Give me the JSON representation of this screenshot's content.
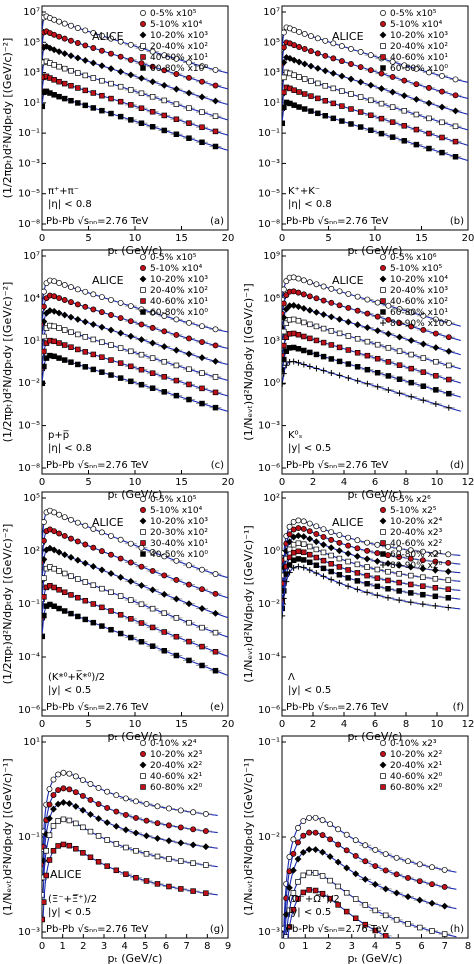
{
  "chart_data": [
    {
      "type": "scatter",
      "panel": "(a)",
      "logy": true,
      "xlim": [
        0,
        20
      ],
      "ylim": [
        1e-08,
        10000000.0
      ],
      "xticks": [
        "0",
        "5",
        "10",
        "15",
        "20"
      ],
      "yticks": [
        "10⁷",
        "10⁵",
        "10³",
        "10¹",
        "10⁻¹",
        "10⁻³",
        "10⁻⁵",
        "10⁻⁸"
      ],
      "ylabel": "(1/2πpₜ)d²N/dpₜdy [(GeV/c)⁻²]",
      "xlabel": "pₜ (GeV/c)",
      "experiment": "ALICE",
      "particle": "π⁺+π⁻",
      "cut": "|η| < 0.8",
      "system": "Pb-Pb √sₙₙ=2.76 TeV",
      "legend": [
        "0-5%  x10⁵",
        "5-10%  x10⁴",
        "10-20%  x10³",
        "20-40%  x10²",
        "40-60%  x10¹",
        "60-80%  x10⁰"
      ],
      "amp": [
        3000000.0,
        300000.0,
        30000.0,
        3000.0,
        300.0,
        30
      ],
      "peak": 0.3,
      "decay": [
        4.2,
        4.4,
        4.6,
        4.8,
        5.0,
        5.2
      ],
      "xmax": 20
    },
    {
      "type": "scatter",
      "panel": "(b)",
      "logy": true,
      "xlim": [
        0,
        20
      ],
      "ylim": [
        1e-08,
        10000000.0
      ],
      "xticks": [
        "0",
        "5",
        "10",
        "15",
        "20"
      ],
      "yticks": [
        "10⁷",
        "10⁵",
        "10³",
        "10¹",
        "10⁻¹",
        "10⁻³",
        "10⁻⁵",
        "10⁻⁸"
      ],
      "ylabel": "",
      "xlabel": "pₜ (GeV/c)",
      "experiment": "ALICE",
      "particle": "K⁺+K⁻",
      "cut": "|η| < 0.8",
      "system": "Pb-Pb √sₙₙ=2.76 TeV",
      "legend": [
        "0-5%  x10⁵",
        "5-10%  x10⁴",
        "10-20%  x10³",
        "20-40%  x10²",
        "40-60%  x10¹",
        "60-80%  x10⁰"
      ],
      "amp": [
        600000.0,
        60000.0,
        6000.0,
        600.0,
        60,
        6
      ],
      "peak": 0.5,
      "decay": [
        4.0,
        4.2,
        4.4,
        4.6,
        4.8,
        5.0
      ],
      "xmax": 20
    },
    {
      "type": "scatter",
      "panel": "(c)",
      "logy": true,
      "xlim": [
        0,
        20
      ],
      "ylim": [
        1e-08,
        10000000.0
      ],
      "xticks": [
        "0",
        "5",
        "10",
        "15",
        "20"
      ],
      "yticks": [
        "10⁷",
        "10⁴",
        "10¹",
        "10⁻²",
        "10⁻⁵",
        "10⁻⁸"
      ],
      "ylabel": "(1/2πpₜ)d²N/dpₜdy [(GeV/c)⁻²]",
      "xlabel": "pₜ (GeV/c)",
      "experiment": "ALICE",
      "particle": "p+p̅",
      "cut": "|η| < 0.8",
      "system": "Pb-Pb √sₙₙ=2.76 TeV",
      "legend": [
        "0-5%  x10⁵",
        "5-10%  x10⁴",
        "10-20%  x10³",
        "20-40%  x10²",
        "40-60%  x10¹",
        "60-80%  x10⁰"
      ],
      "amp": [
        200000.0,
        20000.0,
        2000.0,
        200.0,
        20,
        2
      ],
      "peak": 1.0,
      "decay": [
        3.8,
        4.0,
        4.2,
        4.4,
        4.6,
        4.8
      ],
      "xmax": 20
    },
    {
      "type": "scatter",
      "panel": "(d)",
      "logy": true,
      "xlim": [
        0,
        13
      ],
      "ylim": [
        1e-06,
        10000000000.0
      ],
      "xticks": [
        "0",
        "2",
        "4",
        "6",
        "8",
        "10",
        "12"
      ],
      "yticks": [
        "10⁹",
        "10⁶",
        "10³",
        "10⁰",
        "10⁻³",
        "10⁻⁶"
      ],
      "ylabel": "(1/Nₑᵥₜ)d²N/dpₜdy [(GeV/c)⁻¹]",
      "xlabel": "pₜ (GeV/c)",
      "experiment": "ALICE",
      "particle": "K⁰ₛ",
      "cut": "|y| < 0.5",
      "system": "Pb-Pb √sₙₙ=2.76 TeV",
      "legend": [
        "0-5%  x10⁶",
        "5-10%  x10⁵",
        "10-20%  x10⁴",
        "20-40%  x10³",
        "40-60%  x10²",
        "60-80%  x10¹",
        "80-90%  x10⁰"
      ],
      "amp": [
        300000000.0,
        30000000.0,
        3000000.0,
        300000.0,
        30000.0,
        3000.0,
        300.0
      ],
      "peak": 0.8,
      "decay": [
        4.5,
        4.6,
        4.7,
        4.8,
        4.9,
        5.0,
        5.2
      ],
      "xmax": 12.5
    },
    {
      "type": "scatter",
      "panel": "(e)",
      "logy": true,
      "xlim": [
        0,
        20
      ],
      "ylim": [
        1e-06,
        1000000.0
      ],
      "xticks": [
        "0",
        "5",
        "10",
        "15",
        "20"
      ],
      "yticks": [
        "10⁵",
        "10²",
        "10⁻¹",
        "10⁻⁴",
        "10⁻⁶"
      ],
      "ylabel": "(1/2πpₜ)d²N/dpₜdy [(GeV/c)⁻²]",
      "xlabel": "pₜ (GeV/c)",
      "experiment": "ALICE",
      "particle": "(K*⁰+K̅*⁰)/2",
      "cut": "|y| < 0.5",
      "system": "Pb-Pb √sₙₙ=2.76 TeV",
      "legend": [
        "0-5%  x10⁵",
        "5-10%  x10⁴",
        "10-20%  x10³",
        "20-30%  x10²",
        "30-40%  x10¹",
        "40-50%  x10⁰"
      ],
      "amp": [
        200000.0,
        20000.0,
        2000.0,
        200.0,
        20,
        2
      ],
      "peak": 0.8,
      "decay": [
        4.0,
        4.2,
        4.4,
        4.6,
        4.8,
        5.0
      ],
      "xmax": 20
    },
    {
      "type": "scatter",
      "panel": "(f)",
      "logy": true,
      "xlim": [
        0,
        12
      ],
      "ylim": [
        1e-06,
        1000.0
      ],
      "xticks": [
        "0",
        "2",
        "4",
        "6",
        "8",
        "10",
        "12"
      ],
      "yticks": [
        "10²",
        "10⁰",
        "10⁻²",
        "10⁻⁴",
        "10⁻⁶"
      ],
      "ylabel": "(1/Nₑᵥₜ)d²N/dpₜdy [(GeV/c)⁻¹]",
      "xlabel": "pₜ (GeV/c)",
      "experiment": "ALICE",
      "particle": "Λ",
      "cut": "|y| < 0.5",
      "system": "Pb-Pb √sₙₙ=2.76 TeV",
      "legend": [
        "0-5%  x2⁶",
        "5-10%  x2⁵",
        "10-20%  x2⁴",
        "20-40%  x2³",
        "40-60%  x2²",
        "60-80%  x2¹",
        "80-90%  x2⁰"
      ],
      "amp": [
        200,
        100,
        50,
        25,
        12,
        6,
        3
      ],
      "peak": 1.3,
      "decay": [
        1.55,
        1.6,
        1.65,
        1.7,
        1.75,
        1.8,
        1.9
      ],
      "xmax": 11.5
    },
    {
      "type": "scatter",
      "panel": "(g)",
      "logy": true,
      "xlim": [
        0,
        9
      ],
      "ylim": [
        0.0003,
        50
      ],
      "xticks": [
        "0",
        "1",
        "2",
        "3",
        "4",
        "5",
        "6",
        "7",
        "8",
        "9"
      ],
      "yticks": [
        "10¹",
        "10⁻¹",
        "10⁻³"
      ],
      "ylabel": "(1/Nₑᵥₜ)d²N/dpₜdy [(GeV/c)⁻¹]",
      "xlabel": "pₜ (GeV/c)",
      "experiment": "ALICE",
      "particle": "(Ξ⁻+Ξ̅⁺)/2",
      "cut": "|y| < 0.5",
      "system": "Pb-Pb √sₙₙ=2.76 TeV",
      "legend": [
        "0-10%  x2⁴",
        "10-20%  x2³",
        "20-40%  x2²",
        "40-60%  x2¹",
        "60-80%  x2⁰"
      ],
      "amp": [
        20,
        8,
        3.5,
        1.3,
        0.3
      ],
      "peak": 1.4,
      "decay": [
        1.35,
        1.4,
        1.45,
        1.5,
        1.6
      ],
      "xmax": 8.5
    },
    {
      "type": "scatter",
      "panel": "(h)",
      "logy": true,
      "xlim": [
        0,
        8
      ],
      "ylim": [
        0.0007,
        1
      ],
      "xticks": [
        "0",
        "1",
        "2",
        "3",
        "4",
        "5",
        "6",
        "7",
        "8"
      ],
      "yticks": [
        "10⁻¹",
        "10⁻²",
        "10⁻³"
      ],
      "ylabel": "(1/Nₑᵥₜ)d²N/dpₜdy [(GeV/c)⁻¹]",
      "xlabel": "pₜ (GeV/c)",
      "experiment": "",
      "particle": "(Ω⁻+Ω̅⁺)/2",
      "cut": "|y| < 0.5",
      "system": "Pb-Pb √sₙₙ=2.76 TeV",
      "legend": [
        "0-10%  x2³",
        "10-20%  x2²",
        "20-40%  x2¹",
        "40-60%  x2⁰",
        "60-80%  x2⁰"
      ],
      "amp": [
        0.3,
        0.18,
        0.1,
        0.045,
        0.025
      ],
      "peak": 2.0,
      "decay": [
        1.3,
        1.35,
        1.4,
        1.5,
        1.6
      ],
      "xmax": 7.5
    }
  ]
}
